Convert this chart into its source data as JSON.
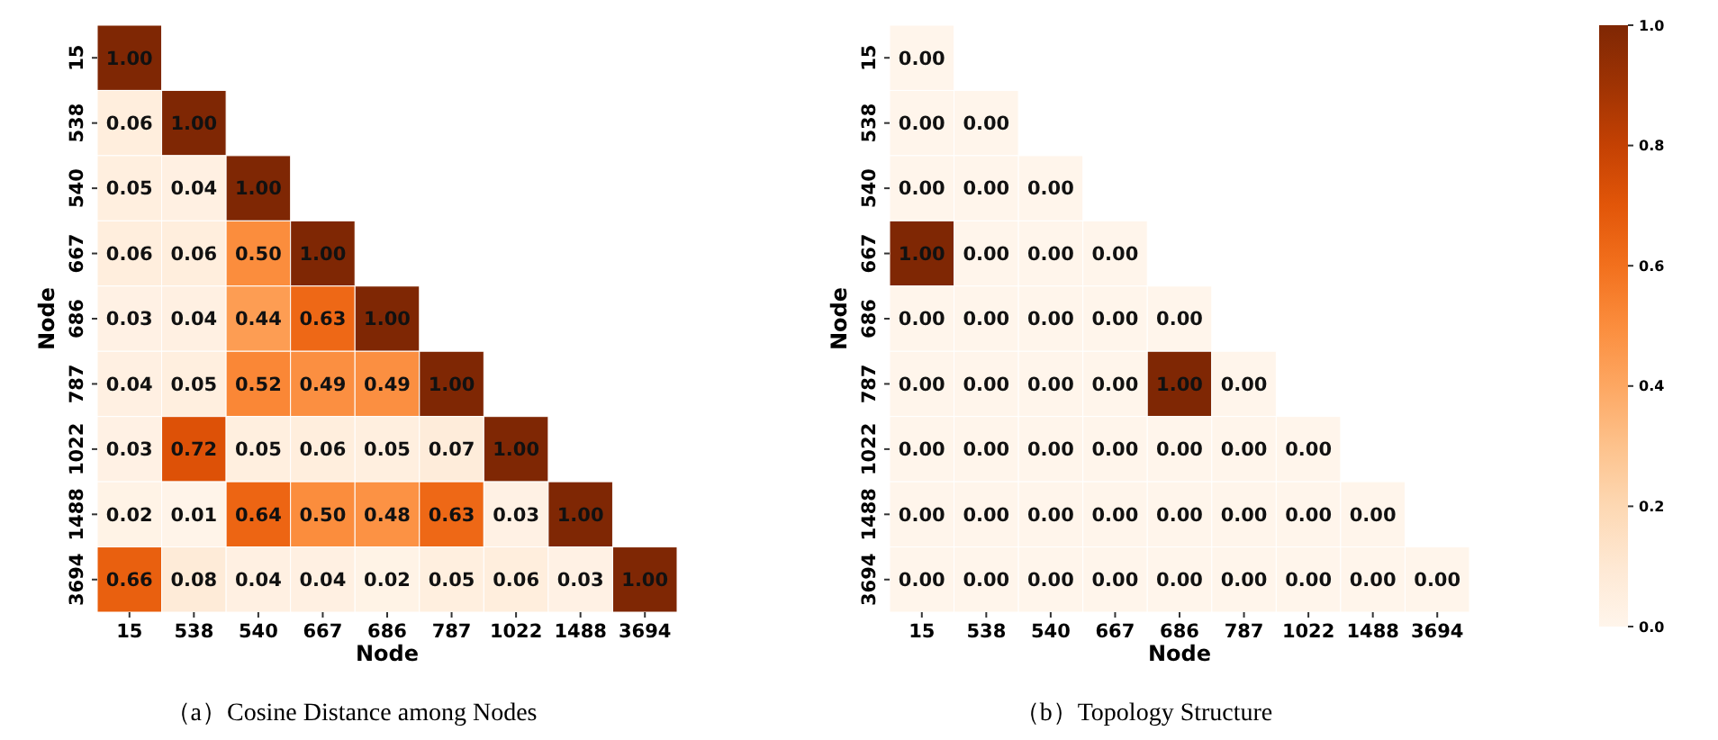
{
  "chart_data": [
    {
      "type": "heatmap",
      "title": "（a）Cosine Distance among Nodes",
      "xlabel": "Node",
      "ylabel": "Node",
      "categories": [
        "15",
        "538",
        "540",
        "667",
        "686",
        "787",
        "1022",
        "1488",
        "3694"
      ],
      "y_categories": [
        "15",
        "538",
        "540",
        "667",
        "686",
        "787",
        "1022",
        "1488",
        "3694"
      ],
      "cells": [
        [
          1.0,
          null,
          null,
          null,
          null,
          null,
          null,
          null,
          null
        ],
        [
          0.06,
          1.0,
          null,
          null,
          null,
          null,
          null,
          null,
          null
        ],
        [
          0.05,
          0.04,
          1.0,
          null,
          null,
          null,
          null,
          null,
          null
        ],
        [
          0.06,
          0.06,
          0.5,
          1.0,
          null,
          null,
          null,
          null,
          null
        ],
        [
          0.03,
          0.04,
          0.44,
          0.63,
          1.0,
          null,
          null,
          null,
          null
        ],
        [
          0.04,
          0.05,
          0.52,
          0.49,
          0.49,
          1.0,
          null,
          null,
          null
        ],
        [
          0.03,
          0.72,
          0.05,
          0.06,
          0.05,
          0.07,
          1.0,
          null,
          null
        ],
        [
          0.02,
          0.01,
          0.64,
          0.5,
          0.48,
          0.63,
          0.03,
          1.0,
          null
        ],
        [
          0.66,
          0.08,
          0.04,
          0.04,
          0.02,
          0.05,
          0.06,
          0.03,
          1.0
        ]
      ],
      "cell_labels": [
        [
          "1.00",
          null,
          null,
          null,
          null,
          null,
          null,
          null,
          null
        ],
        [
          "0.06",
          "1.00",
          null,
          null,
          null,
          null,
          null,
          null,
          null
        ],
        [
          "0.05",
          "0.04",
          "1.00",
          null,
          null,
          null,
          null,
          null,
          null
        ],
        [
          "0.06",
          "0.06",
          "0.50",
          "1.00",
          null,
          null,
          null,
          null,
          null
        ],
        [
          "0.03",
          "0.04",
          "0.44",
          "0.63",
          "1.00",
          null,
          null,
          null,
          null
        ],
        [
          "0.04",
          "0.05",
          "0.52",
          "0.49",
          "0.49",
          "1.00",
          null,
          null,
          null
        ],
        [
          "0.03",
          "0.72",
          "0.05",
          "0.06",
          "0.05",
          "0.07",
          "1.00",
          null,
          null
        ],
        [
          "0.02",
          "0.01",
          "0.64",
          "0.50",
          "0.48",
          "0.63",
          "0.03",
          "1.00",
          null
        ],
        [
          "0.66",
          "0.08",
          "0.04",
          "0.04",
          "0.02",
          "0.05",
          "0.06",
          "0.03",
          "1.00"
        ]
      ]
    },
    {
      "type": "heatmap",
      "title": "（b）Topology Structure",
      "xlabel": "Node",
      "ylabel": "Node",
      "categories": [
        "15",
        "538",
        "540",
        "667",
        "686",
        "787",
        "1022",
        "1488",
        "3694"
      ],
      "y_categories": [
        "15",
        "538",
        "540",
        "667",
        "686",
        "787",
        "1022",
        "1488",
        "3694"
      ],
      "cells": [
        [
          0,
          null,
          null,
          null,
          null,
          null,
          null,
          null,
          null
        ],
        [
          0,
          0,
          null,
          null,
          null,
          null,
          null,
          null,
          null
        ],
        [
          0,
          0,
          0,
          null,
          null,
          null,
          null,
          null,
          null
        ],
        [
          1,
          0,
          0,
          0,
          null,
          null,
          null,
          null,
          null
        ],
        [
          0,
          0,
          0,
          0,
          0,
          null,
          null,
          null,
          null
        ],
        [
          0,
          0,
          0,
          0,
          1,
          0,
          null,
          null,
          null
        ],
        [
          0,
          0,
          0,
          0,
          0,
          0,
          0,
          null,
          null
        ],
        [
          0,
          0,
          0,
          0,
          0,
          0,
          0,
          0,
          null
        ],
        [
          0,
          0,
          0,
          0,
          0,
          0,
          0,
          0,
          0
        ]
      ],
      "cell_labels": [
        [
          "0.00",
          null,
          null,
          null,
          null,
          null,
          null,
          null,
          null
        ],
        [
          "0.00",
          "0.00",
          null,
          null,
          null,
          null,
          null,
          null,
          null
        ],
        [
          "0.00",
          "0.00",
          "0.00",
          null,
          null,
          null,
          null,
          null,
          null
        ],
        [
          "1.00",
          "0.00",
          "0.00",
          "0.00",
          null,
          null,
          null,
          null,
          null
        ],
        [
          "0.00",
          "0.00",
          "0.00",
          "0.00",
          "0.00",
          null,
          null,
          null,
          null
        ],
        [
          "0.00",
          "0.00",
          "0.00",
          "0.00",
          "1.00",
          "0.00",
          null,
          null,
          null
        ],
        [
          "0.00",
          "0.00",
          "0.00",
          "0.00",
          "0.00",
          "0.00",
          "0.00",
          null,
          null
        ],
        [
          "0.00",
          "0.00",
          "0.00",
          "0.00",
          "0.00",
          "0.00",
          "0.00",
          "0.00",
          null
        ],
        [
          "0.00",
          "0.00",
          "0.00",
          "0.00",
          "0.00",
          "0.00",
          "0.00",
          "0.00",
          "0.00"
        ]
      ],
      "clim": [
        0,
        1
      ],
      "cticks": [
        {
          "value": 0,
          "label": "0.0"
        },
        {
          "value": 0.2,
          "label": "0.2"
        },
        {
          "value": 0.4,
          "label": "0.4"
        },
        {
          "value": 0.6,
          "label": "0.6"
        },
        {
          "value": 0.8,
          "label": "0.8"
        },
        {
          "value": 1,
          "label": "1.0"
        }
      ]
    }
  ]
}
